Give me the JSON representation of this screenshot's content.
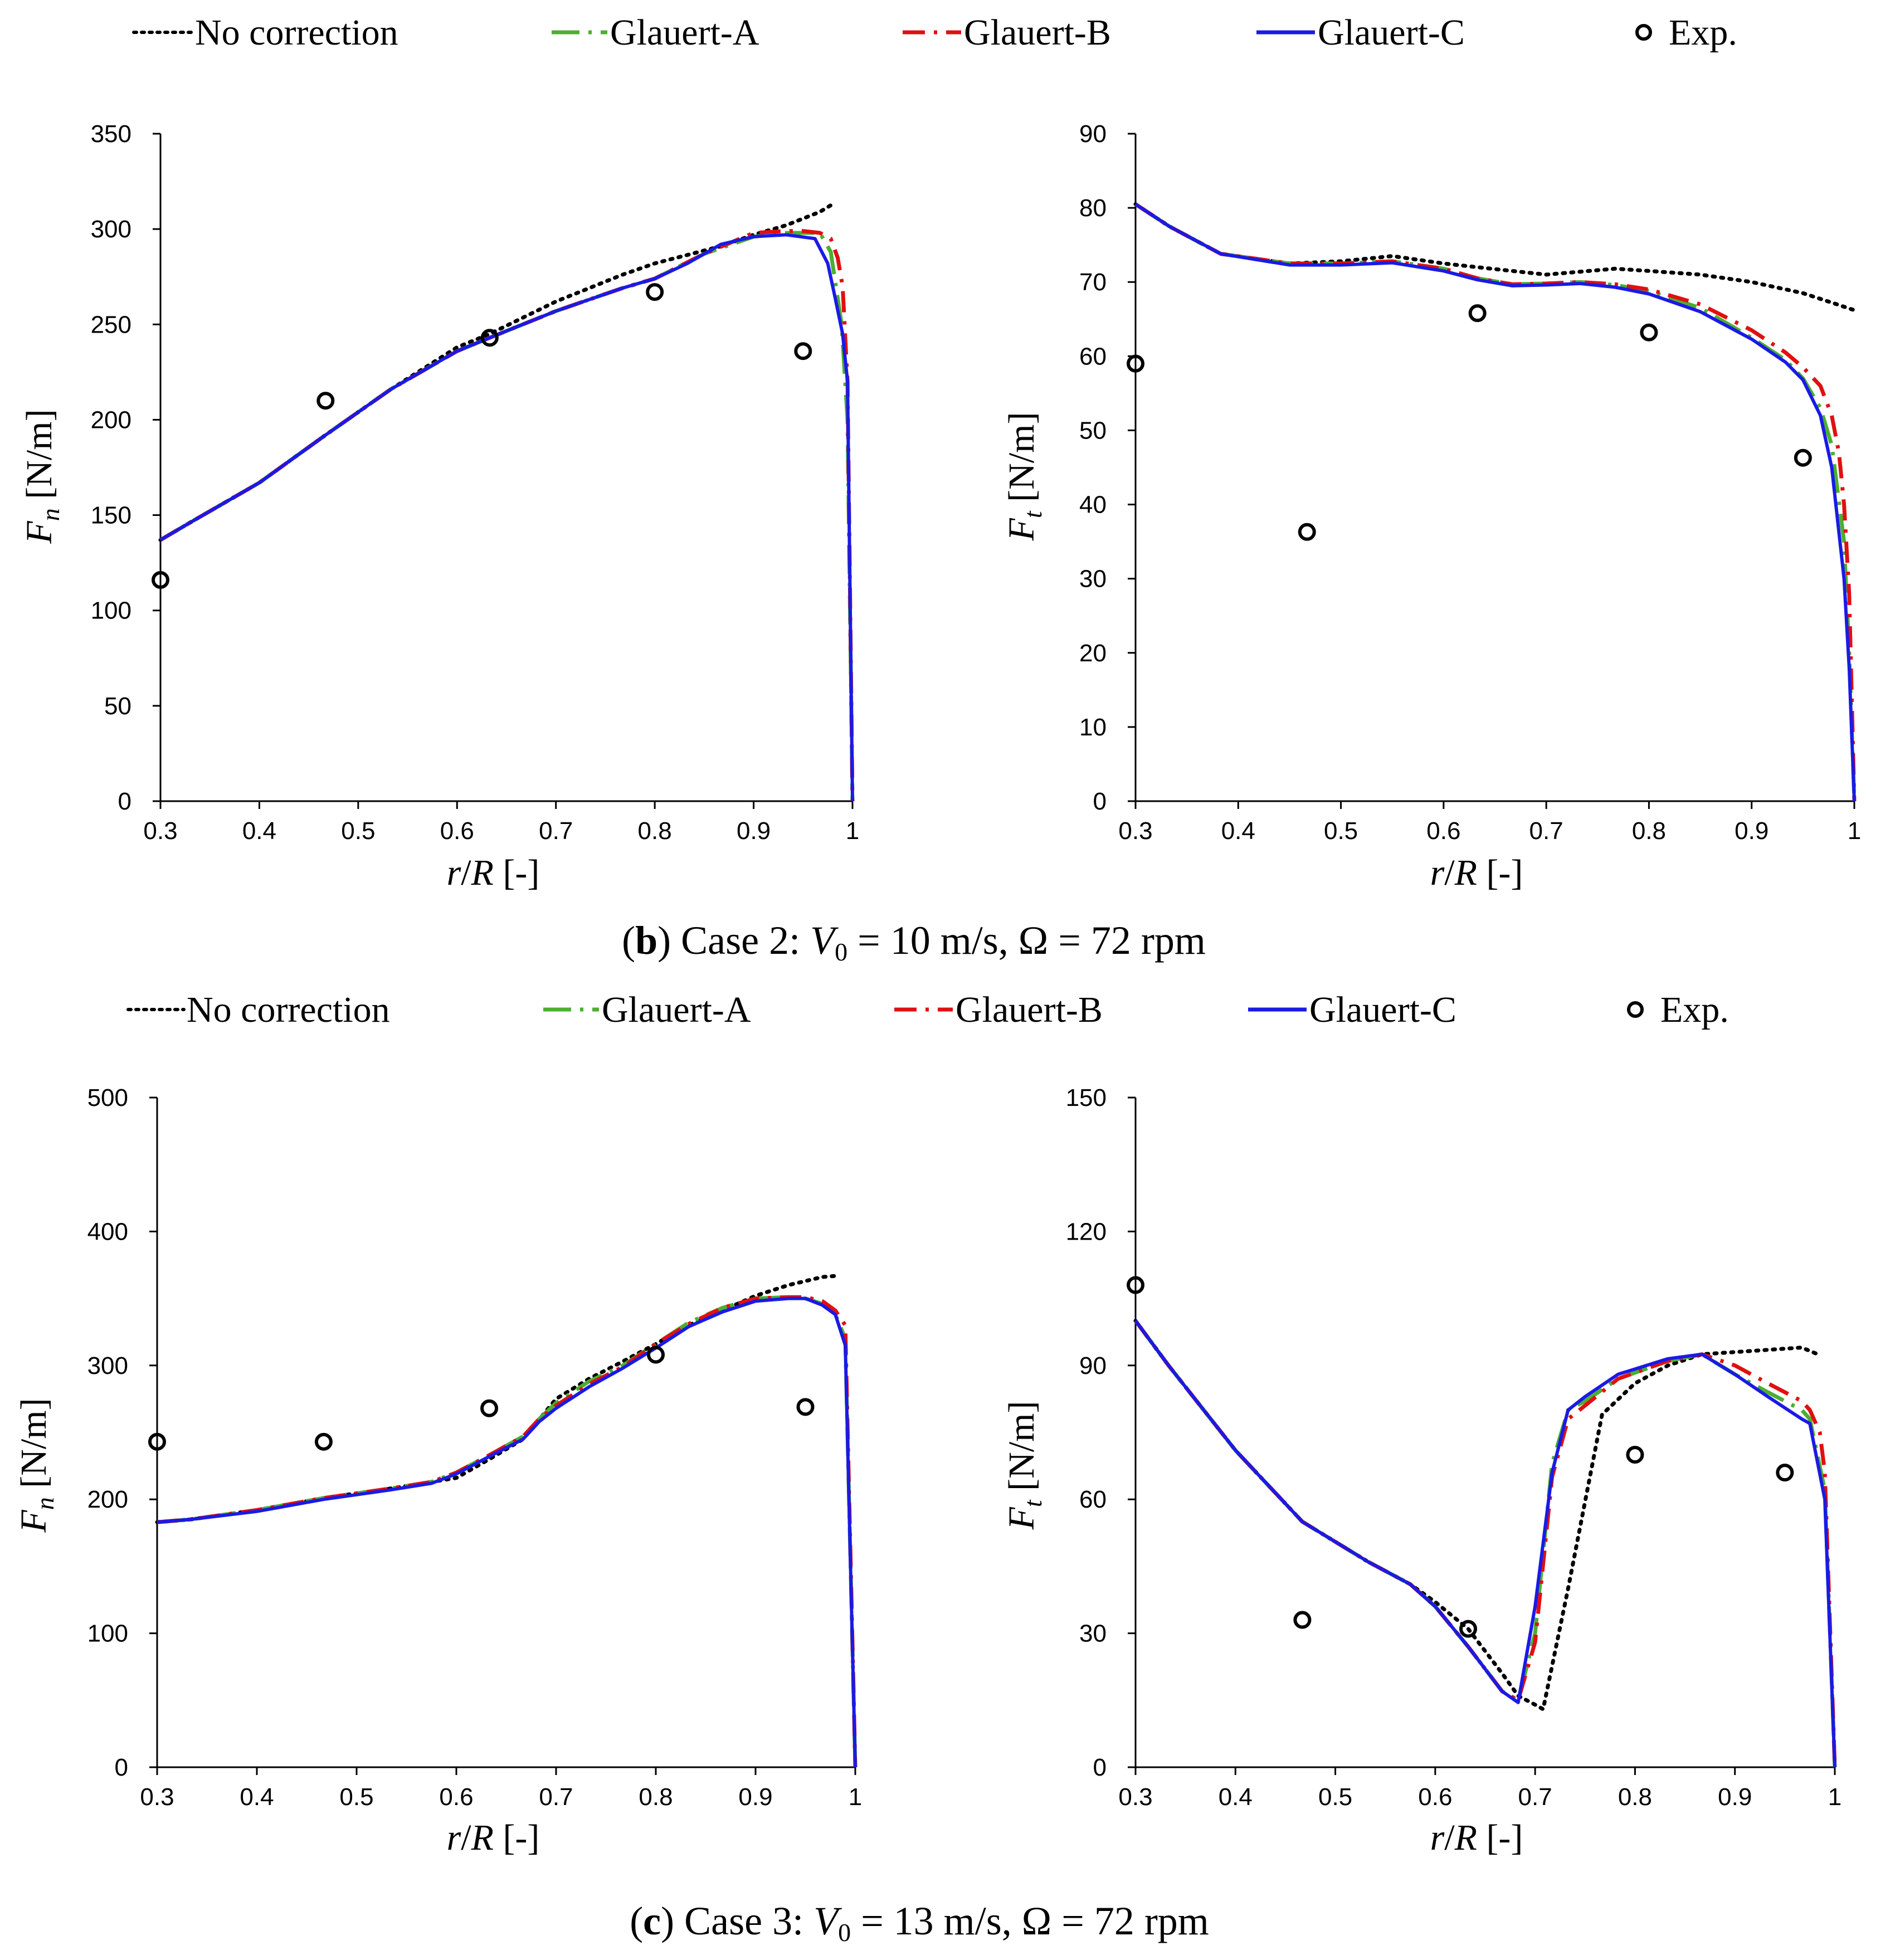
{
  "legend": {
    "items": [
      {
        "key": "no_correction",
        "label": "No correction",
        "color": "#000000",
        "dash": "dot"
      },
      {
        "key": "glauert_a",
        "label": "Glauert-A",
        "color": "#4caf30",
        "dash": "dashdot"
      },
      {
        "key": "glauert_b",
        "label": "Glauert-B",
        "color": "#e01010",
        "dash": "dashdot"
      },
      {
        "key": "glauert_c",
        "label": "Glauert-C",
        "color": "#1a1ae6",
        "dash": "solid"
      },
      {
        "key": "exp",
        "label": "Exp.",
        "color": "#000000",
        "dash": "marker"
      }
    ]
  },
  "captions": [
    {
      "letter": "b",
      "case": "Case 2: ",
      "v": "V",
      "sub": "0",
      "rest": " = 10 m/s, Ω = 72 rpm"
    },
    {
      "letter": "c",
      "case": "Case 3: ",
      "v": "V",
      "sub": "0",
      "rest": " = 13 m/s, Ω = 72 rpm"
    }
  ],
  "axis_labels": {
    "x": {
      "r": "r",
      "slash": "/",
      "R": "R",
      "unit": " [-]"
    },
    "fn": {
      "F": "F",
      "sub": "n",
      "unit": " [N/m]"
    },
    "ft": {
      "F": "F",
      "sub": "t",
      "unit": " [N/m]"
    }
  },
  "chart_data": [
    {
      "id": "case2_fn",
      "type": "line",
      "title": "Case 2 Fn",
      "xlabel": "r/R [-]",
      "ylabel": "Fn [N/m]",
      "xlim": [
        0.3,
        1.0
      ],
      "ylim": [
        0,
        350
      ],
      "xticks": [
        0.3,
        0.4,
        0.5,
        0.6,
        0.7,
        0.8,
        0.9,
        1.0
      ],
      "xticklabels": [
        "0.3",
        "0.4",
        "0.5",
        "0.6",
        "0.7",
        "0.8",
        "0.9",
        "1"
      ],
      "yticks": [
        0,
        50,
        100,
        150,
        200,
        250,
        300,
        350
      ],
      "series": [
        {
          "key": "no_correction",
          "x": [
            0.3,
            0.333,
            0.4,
            0.467,
            0.533,
            0.6,
            0.633,
            0.7,
            0.767,
            0.8,
            0.867,
            0.9,
            0.933,
            0.967,
            0.983
          ],
          "y": [
            137,
            147,
            167,
            192,
            216,
            238,
            245,
            262,
            276,
            282,
            291,
            297,
            302,
            309,
            314
          ]
        },
        {
          "key": "glauert_a",
          "x": [
            0.3,
            0.333,
            0.4,
            0.467,
            0.533,
            0.6,
            0.633,
            0.7,
            0.767,
            0.8,
            0.85,
            0.9,
            0.933,
            0.967,
            0.978,
            0.989,
            0.995,
            1.0
          ],
          "y": [
            137,
            147,
            167,
            192,
            216,
            236,
            243,
            257,
            269,
            274,
            287,
            296,
            298,
            298,
            288,
            250,
            200,
            0
          ]
        },
        {
          "key": "glauert_b",
          "x": [
            0.3,
            0.333,
            0.4,
            0.467,
            0.533,
            0.6,
            0.633,
            0.7,
            0.767,
            0.8,
            0.85,
            0.9,
            0.933,
            0.95,
            0.967,
            0.978,
            0.985,
            0.99,
            0.995,
            1.0
          ],
          "y": [
            137,
            147,
            167,
            192,
            216,
            236,
            243,
            257,
            269,
            274,
            287,
            298,
            299,
            299,
            298,
            295,
            285,
            270,
            220,
            0
          ]
        },
        {
          "key": "glauert_c",
          "x": [
            0.3,
            0.333,
            0.4,
            0.467,
            0.533,
            0.6,
            0.633,
            0.7,
            0.767,
            0.8,
            0.833,
            0.867,
            0.9,
            0.933,
            0.962,
            0.975,
            0.982,
            0.99,
            0.995,
            1.0
          ],
          "y": [
            137,
            147,
            167,
            192,
            216,
            236,
            243,
            257,
            269,
            274,
            282,
            292,
            296,
            297,
            295,
            282,
            265,
            245,
            220,
            0
          ]
        },
        {
          "key": "exp",
          "x": [
            0.3,
            0.467,
            0.633,
            0.8,
            0.95
          ],
          "y": [
            116,
            210,
            243,
            267,
            236
          ]
        }
      ]
    },
    {
      "id": "case2_ft",
      "type": "line",
      "title": "Case 2 Ft",
      "xlabel": "r/R [-]",
      "ylabel": "Ft [N/m]",
      "xlim": [
        0.3,
        1.0
      ],
      "ylim": [
        0,
        90
      ],
      "xticks": [
        0.3,
        0.4,
        0.5,
        0.6,
        0.7,
        0.8,
        0.9,
        1.0
      ],
      "xticklabels": [
        "0.3",
        "0.4",
        "0.5",
        "0.6",
        "0.7",
        "0.8",
        "0.9",
        "1"
      ],
      "yticks": [
        0,
        10,
        20,
        30,
        40,
        50,
        60,
        70,
        80,
        90
      ],
      "series": [
        {
          "key": "no_correction",
          "x": [
            0.3,
            0.333,
            0.383,
            0.45,
            0.5,
            0.55,
            0.6,
            0.633,
            0.7,
            0.767,
            0.8,
            0.85,
            0.9,
            0.95,
            0.983,
            1.0
          ],
          "y": [
            80.5,
            77.5,
            73.8,
            72.5,
            72.8,
            73.5,
            72.5,
            72,
            71,
            71.8,
            71.5,
            71,
            70,
            68.5,
            67,
            66.2
          ]
        },
        {
          "key": "glauert_a",
          "x": [
            0.3,
            0.333,
            0.383,
            0.45,
            0.5,
            0.55,
            0.6,
            0.633,
            0.667,
            0.7,
            0.733,
            0.767,
            0.8,
            0.85,
            0.9,
            0.933,
            0.95,
            0.967,
            0.978,
            0.99,
            0.995,
            1.0
          ],
          "y": [
            80.5,
            77.5,
            73.8,
            72.5,
            72.5,
            72.8,
            71.8,
            70.5,
            69.7,
            69.8,
            70,
            69.6,
            68.8,
            66.5,
            62.5,
            59.5,
            57,
            53,
            48,
            35,
            20,
            0
          ]
        },
        {
          "key": "glauert_b",
          "x": [
            0.3,
            0.333,
            0.383,
            0.45,
            0.5,
            0.55,
            0.6,
            0.633,
            0.667,
            0.7,
            0.733,
            0.767,
            0.8,
            0.85,
            0.9,
            0.933,
            0.95,
            0.967,
            0.978,
            0.985,
            0.99,
            0.995,
            1.0
          ],
          "y": [
            80.5,
            77.5,
            73.8,
            72.5,
            72.5,
            72.8,
            71.8,
            70.5,
            69.7,
            69.8,
            70,
            69.7,
            69,
            67,
            63.5,
            60.5,
            58.5,
            56,
            52,
            47,
            40,
            28,
            0
          ]
        },
        {
          "key": "glauert_c",
          "x": [
            0.3,
            0.333,
            0.383,
            0.45,
            0.5,
            0.55,
            0.6,
            0.633,
            0.667,
            0.7,
            0.733,
            0.767,
            0.8,
            0.85,
            0.9,
            0.933,
            0.95,
            0.967,
            0.978,
            0.99,
            0.995,
            1.0
          ],
          "y": [
            80.5,
            77.5,
            73.8,
            72.3,
            72.3,
            72.6,
            71.5,
            70.3,
            69.5,
            69.6,
            69.8,
            69.3,
            68.4,
            66,
            62.3,
            59.2,
            56.8,
            52,
            45,
            30,
            18,
            0
          ]
        },
        {
          "key": "exp",
          "x": [
            0.3,
            0.467,
            0.633,
            0.8,
            0.95
          ],
          "y": [
            59,
            36.3,
            65.8,
            63.2,
            46.3
          ]
        }
      ]
    },
    {
      "id": "case3_fn",
      "type": "line",
      "title": "Case 3 Fn",
      "xlabel": "r/R [-]",
      "ylabel": "Fn [N/m]",
      "xlim": [
        0.3,
        1.0
      ],
      "ylim": [
        0,
        500
      ],
      "xticks": [
        0.3,
        0.4,
        0.5,
        0.6,
        0.7,
        0.8,
        0.9,
        1.0
      ],
      "xticklabels": [
        "0.3",
        "0.4",
        "0.5",
        "0.6",
        "0.7",
        "0.8",
        "0.9",
        "1"
      ],
      "yticks": [
        0,
        100,
        200,
        300,
        400,
        500
      ],
      "series": [
        {
          "key": "no_correction",
          "x": [
            0.3,
            0.333,
            0.4,
            0.467,
            0.533,
            0.6,
            0.633,
            0.667,
            0.7,
            0.733,
            0.767,
            0.8,
            0.833,
            0.867,
            0.9,
            0.933,
            0.967,
            0.983
          ],
          "y": [
            183,
            185,
            192,
            201,
            208,
            216,
            230,
            245,
            275,
            290,
            303,
            316,
            330,
            341,
            352,
            360,
            366,
            367
          ]
        },
        {
          "key": "glauert_a",
          "x": [
            0.3,
            0.333,
            0.4,
            0.467,
            0.533,
            0.575,
            0.6,
            0.633,
            0.667,
            0.683,
            0.7,
            0.733,
            0.767,
            0.8,
            0.833,
            0.867,
            0.9,
            0.933,
            0.95,
            0.967,
            0.98,
            0.99,
            1.0
          ],
          "y": [
            183,
            185,
            192,
            201,
            208,
            213,
            220,
            233,
            247,
            260,
            272,
            288,
            300,
            316,
            332,
            343,
            350,
            351,
            350,
            346,
            338,
            320,
            0
          ]
        },
        {
          "key": "glauert_b",
          "x": [
            0.3,
            0.333,
            0.4,
            0.467,
            0.533,
            0.575,
            0.6,
            0.633,
            0.667,
            0.683,
            0.7,
            0.733,
            0.767,
            0.8,
            0.833,
            0.867,
            0.9,
            0.933,
            0.95,
            0.967,
            0.98,
            0.99,
            1.0
          ],
          "y": [
            183,
            185,
            192,
            201,
            208,
            213,
            220,
            233,
            247,
            260,
            270,
            286,
            299,
            316,
            331,
            343,
            350,
            351,
            351,
            348,
            341,
            330,
            0
          ]
        },
        {
          "key": "glauert_c",
          "x": [
            0.3,
            0.333,
            0.4,
            0.467,
            0.533,
            0.575,
            0.6,
            0.633,
            0.667,
            0.683,
            0.7,
            0.733,
            0.767,
            0.8,
            0.833,
            0.867,
            0.9,
            0.933,
            0.95,
            0.967,
            0.98,
            0.99,
            1.0
          ],
          "y": [
            183,
            185,
            191,
            200,
            207,
            212,
            219,
            232,
            245,
            258,
            268,
            284,
            298,
            313,
            329,
            340,
            348,
            350,
            350,
            345,
            338,
            315,
            0
          ]
        },
        {
          "key": "exp",
          "x": [
            0.3,
            0.467,
            0.633,
            0.8,
            0.95
          ],
          "y": [
            243,
            243,
            268,
            308,
            269
          ]
        }
      ]
    },
    {
      "id": "case3_ft",
      "type": "line",
      "title": "Case 3 Ft",
      "xlabel": "r/R [-]",
      "ylabel": "Ft [N/m]",
      "xlim": [
        0.3,
        1.0
      ],
      "ylim": [
        0,
        150
      ],
      "xticks": [
        0.3,
        0.4,
        0.5,
        0.6,
        0.7,
        0.8,
        0.9,
        1.0
      ],
      "xticklabels": [
        "0.3",
        "0.4",
        "0.5",
        "0.6",
        "0.7",
        "0.8",
        "0.9",
        "1"
      ],
      "yticks": [
        0,
        30,
        60,
        90,
        120,
        150
      ],
      "series": [
        {
          "key": "no_correction",
          "x": [
            0.3,
            0.333,
            0.4,
            0.467,
            0.533,
            0.575,
            0.6,
            0.633,
            0.667,
            0.683,
            0.7,
            0.708,
            0.733,
            0.767,
            0.8,
            0.833,
            0.867,
            0.9,
            0.933,
            0.967,
            0.983
          ],
          "y": [
            100,
            90,
            71,
            55,
            46,
            41,
            37,
            31,
            21,
            16,
            14,
            13,
            40,
            79,
            86,
            90,
            92.5,
            93,
            93.5,
            94,
            92.5
          ]
        },
        {
          "key": "glauert_a",
          "x": [
            0.3,
            0.333,
            0.4,
            0.467,
            0.533,
            0.575,
            0.6,
            0.633,
            0.667,
            0.683,
            0.7,
            0.717,
            0.733,
            0.75,
            0.783,
            0.833,
            0.867,
            0.9,
            0.933,
            0.967,
            0.975,
            0.99,
            1.0
          ],
          "y": [
            100,
            90,
            71,
            55,
            46,
            41,
            36,
            27,
            17,
            15,
            30,
            68,
            80,
            82,
            87,
            91,
            92.5,
            88,
            84,
            80,
            78,
            62,
            0
          ]
        },
        {
          "key": "glauert_b",
          "x": [
            0.3,
            0.333,
            0.4,
            0.467,
            0.533,
            0.575,
            0.6,
            0.633,
            0.667,
            0.683,
            0.7,
            0.717,
            0.733,
            0.75,
            0.783,
            0.833,
            0.867,
            0.9,
            0.933,
            0.967,
            0.975,
            0.985,
            0.99,
            1.0
          ],
          "y": [
            100,
            90,
            71,
            55,
            46,
            41,
            36,
            27,
            17,
            15,
            28,
            65,
            78,
            81,
            87,
            91,
            92.5,
            90,
            86,
            82,
            80,
            75,
            66,
            0
          ]
        },
        {
          "key": "glauert_c",
          "x": [
            0.3,
            0.333,
            0.4,
            0.467,
            0.533,
            0.575,
            0.6,
            0.633,
            0.667,
            0.683,
            0.7,
            0.717,
            0.733,
            0.75,
            0.783,
            0.833,
            0.867,
            0.9,
            0.933,
            0.967,
            0.975,
            0.99,
            1.0
          ],
          "y": [
            100,
            90,
            71,
            55,
            46,
            41,
            36,
            27,
            17,
            14.5,
            36,
            66,
            80,
            83,
            88,
            91.5,
            92.5,
            88,
            83,
            78,
            77,
            60,
            0
          ]
        },
        {
          "key": "exp",
          "x": [
            0.3,
            0.467,
            0.633,
            0.8,
            0.95
          ],
          "y": [
            108,
            33,
            31,
            70,
            66
          ]
        }
      ]
    }
  ]
}
